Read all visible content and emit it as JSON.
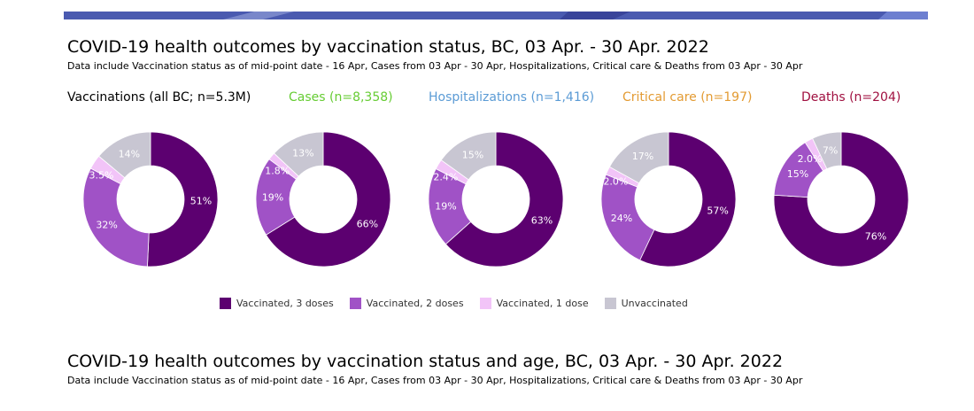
{
  "header": {
    "title": "COVID-19 health outcomes by vaccination status, BC,  03 Apr. - 30 Apr. 2022",
    "subtitle": "Data include Vaccination status as of mid-point date - 16 Apr, Cases  from  03 Apr - 30 Apr, Hospitalizations, Critical care & Deaths from 03 Apr - 30 Apr"
  },
  "section2": {
    "title": "COVID-19 health outcomes by vaccination status and age, BC,  03 Apr. - 30 Apr. 2022",
    "subtitle": "Data include Vaccination status as of mid-point date - 16 Apr, Cases  from  03 Apr - 30 Apr, Hospitalizations, Critical care & Deaths from 03 Apr - 30 Apr"
  },
  "colors": {
    "vaccinated_3": "#5c0070",
    "vaccinated_2": "#a052c6",
    "vaccinated_1": "#f2c4f8",
    "unvaccinated": "#c8c6d2",
    "title_vaccinations": "#000000",
    "title_cases": "#66cc33",
    "title_hospitalizations": "#5b9bd5",
    "title_critical": "#e39b33",
    "title_deaths": "#a01040",
    "topbar": "#4a57a8"
  },
  "legend": [
    {
      "label": "Vaccinated, 3 doses",
      "color": "#5c0070"
    },
    {
      "label": "Vaccinated, 2 doses",
      "color": "#a052c6"
    },
    {
      "label": "Vaccinated, 1 dose",
      "color": "#f2c4f8"
    },
    {
      "label": "Unvaccinated",
      "color": "#c8c6d2"
    }
  ],
  "chart_data": [
    {
      "type": "pie",
      "title": "Vaccinations (all BC; n=5.3M)",
      "categories": [
        "Vaccinated, 3 doses",
        "Vaccinated, 2 doses",
        "Vaccinated, 1 dose",
        "Unvaccinated"
      ],
      "values": [
        51,
        32,
        3.5,
        14
      ],
      "labels": [
        "51%",
        "32%",
        "3.5%",
        "14%"
      ]
    },
    {
      "type": "pie",
      "title": "Cases (n=8,358)",
      "categories": [
        "Vaccinated, 3 doses",
        "Vaccinated, 2 doses",
        "Vaccinated, 1 dose",
        "Unvaccinated"
      ],
      "values": [
        66,
        19,
        1.8,
        13
      ],
      "labels": [
        "66%",
        "19%",
        "1.8%",
        "13%"
      ]
    },
    {
      "type": "pie",
      "title": "Hospitalizations (n=1,416)",
      "categories": [
        "Vaccinated, 3 doses",
        "Vaccinated, 2 doses",
        "Vaccinated, 1 dose",
        "Unvaccinated"
      ],
      "values": [
        63,
        19,
        2.4,
        15
      ],
      "labels": [
        "63%",
        "19%",
        "2.4%",
        "15%"
      ]
    },
    {
      "type": "pie",
      "title": "Critical care (n=197)",
      "categories": [
        "Vaccinated, 3 doses",
        "Vaccinated, 2 doses",
        "Vaccinated, 1 dose",
        "Unvaccinated"
      ],
      "values": [
        57,
        24,
        2.0,
        17
      ],
      "labels": [
        "57%",
        "24%",
        "2.0%",
        "17%"
      ]
    },
    {
      "type": "pie",
      "title": "Deaths (n=204)",
      "categories": [
        "Vaccinated, 3 doses",
        "Vaccinated, 2 doses",
        "Vaccinated, 1 dose",
        "Unvaccinated"
      ],
      "values": [
        76,
        15,
        2.0,
        7
      ],
      "labels": [
        "76%",
        "15%",
        "2.0%",
        "7%"
      ]
    }
  ]
}
